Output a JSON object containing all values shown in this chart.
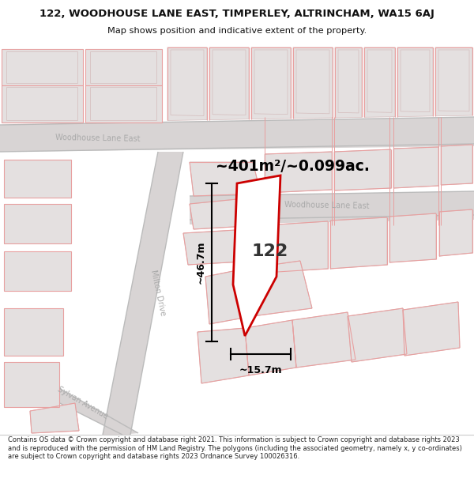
{
  "title": "122, WOODHOUSE LANE EAST, TIMPERLEY, ALTRINCHAM, WA15 6AJ",
  "subtitle": "Map shows position and indicative extent of the property.",
  "footer": "Contains OS data © Crown copyright and database right 2021. This information is subject to Crown copyright and database rights 2023 and is reproduced with the permission of HM Land Registry. The polygons (including the associated geometry, namely x, y co-ordinates) are subject to Crown copyright and database rights 2023 Ordnance Survey 100026316.",
  "area_label": "~401m²/~0.099ac.",
  "house_number": "122",
  "dim_width_label": "~15.7m",
  "dim_height_label": "~46.7m",
  "street_upper_left": "Woodhouse Lane East",
  "street_lower_right": "Woodhouse Lane East",
  "street_left": "Milton Drive",
  "street_bottom": "Sylvan Avenue",
  "map_bg": "#f2efef",
  "road_fill": "#d8d4d4",
  "building_fill": "#e4e0e0",
  "building_stroke": "#d4bcbc",
  "pink": "#e8a0a0",
  "property_stroke": "#cc0000",
  "property_fill": "#ffffff",
  "street_color": "#aaaaaa",
  "title_color": "#111111",
  "footer_color": "#222222"
}
